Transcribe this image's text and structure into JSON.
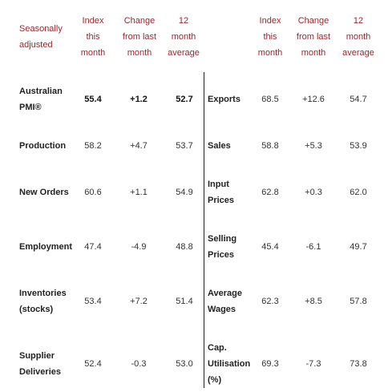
{
  "header": {
    "corner": "Seasonally adjusted",
    "corner_line1": "Seasonally",
    "corner_line2": "adjusted",
    "col_index": [
      "Index",
      "this",
      "month"
    ],
    "col_change": [
      "Change",
      "from last",
      "month"
    ],
    "col_avg": [
      "12",
      "month",
      "average"
    ]
  },
  "left_rows": [
    {
      "label": [
        "Australian",
        "PMI®"
      ],
      "index": "55.4",
      "change": "+1.2",
      "avg": "52.7",
      "bold": true
    },
    {
      "label": [
        "Production"
      ],
      "index": "58.2",
      "change": "+4.7",
      "avg": "53.7",
      "bold": false
    },
    {
      "label": [
        "New Orders"
      ],
      "index": "60.6",
      "change": "+1.1",
      "avg": "54.9",
      "bold": false
    },
    {
      "label": [
        "Employment"
      ],
      "index": "47.4",
      "change": "-4.9",
      "avg": "48.8",
      "bold": false
    },
    {
      "label": [
        "Inventories",
        "(stocks)"
      ],
      "index": "53.4",
      "change": "+7.2",
      "avg": "51.4",
      "bold": false
    },
    {
      "label": [
        "Supplier",
        "Deliveries"
      ],
      "index": "52.4",
      "change": "-0.3",
      "avg": "53.0",
      "bold": false
    }
  ],
  "right_rows": [
    {
      "label": [
        "Exports"
      ],
      "index": "68.5",
      "change": "+12.6",
      "avg": "54.7"
    },
    {
      "label": [
        "Sales"
      ],
      "index": "58.8",
      "change": "+5.3",
      "avg": "53.9"
    },
    {
      "label": [
        "Input",
        "Prices"
      ],
      "index": "62.8",
      "change": "+0.3",
      "avg": "62.0"
    },
    {
      "label": [
        "Selling",
        "Prices"
      ],
      "index": "45.4",
      "change": "-6.1",
      "avg": "49.7"
    },
    {
      "label": [
        "Average",
        "Wages"
      ],
      "index": "62.3",
      "change": "+8.5",
      "avg": "57.8"
    },
    {
      "label": [
        "Cap.",
        "Utilisation",
        "(%)"
      ],
      "index": "69.3",
      "change": "-7.3",
      "avg": "73.8"
    }
  ],
  "colors": {
    "header": "#a3242a",
    "divider": "#222222"
  }
}
